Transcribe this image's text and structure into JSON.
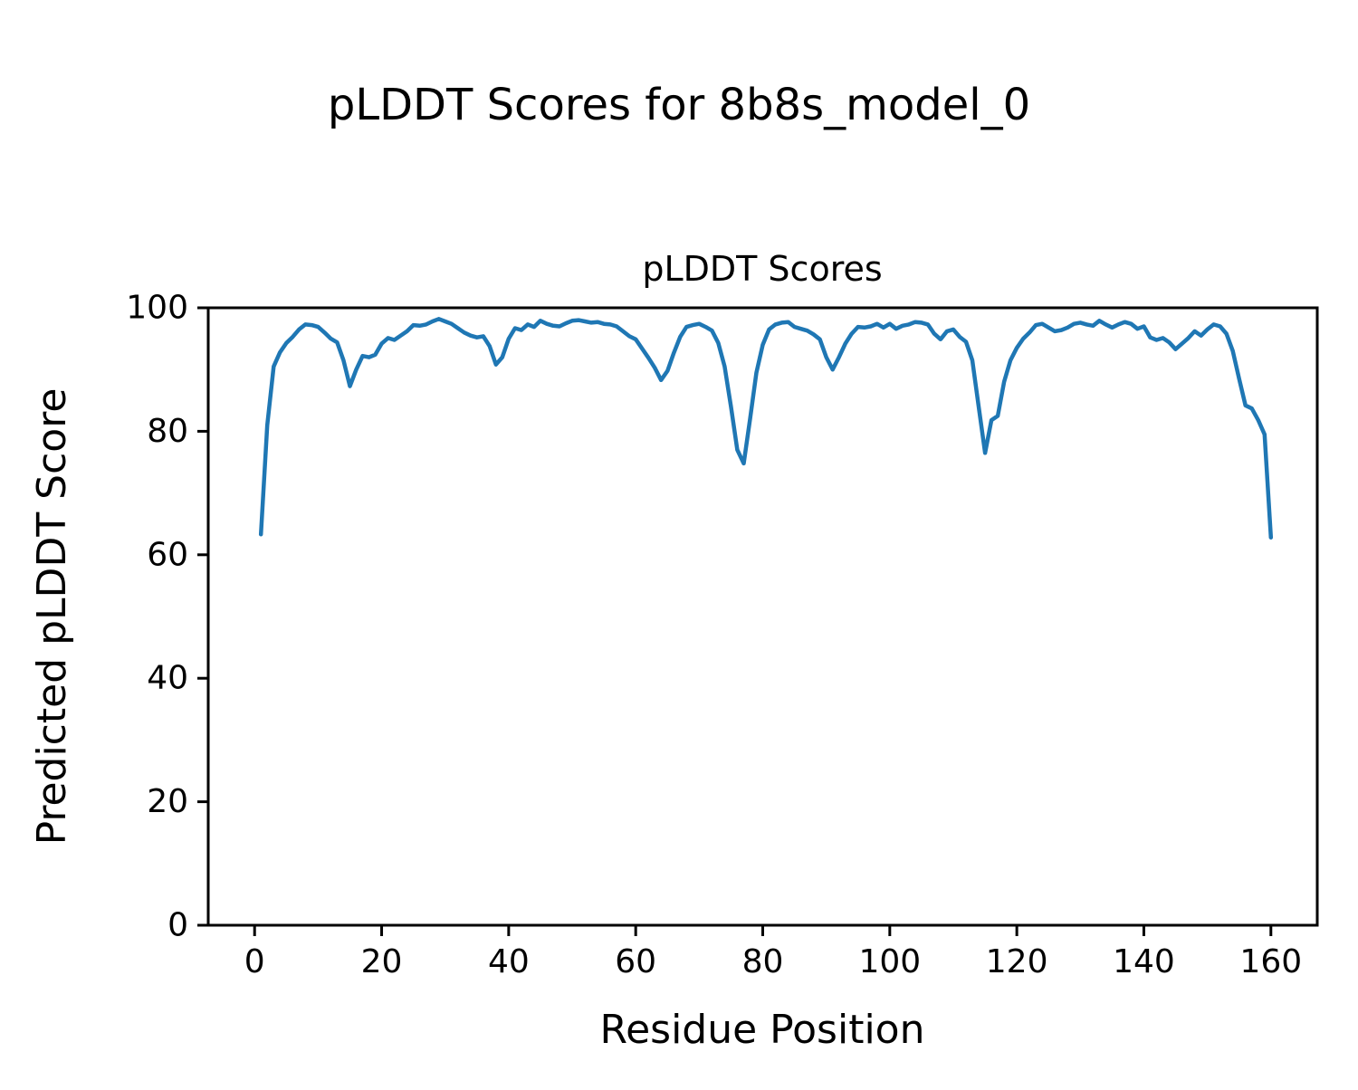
{
  "figure": {
    "title": "pLDDT Scores for 8b8s_model_0",
    "background_color": "#ffffff",
    "text_color": "#000000"
  },
  "chart_data": {
    "type": "line",
    "title": "pLDDT Scores",
    "xlabel": "Residue Position",
    "ylabel": "Predicted pLDDT Score",
    "xlim": [
      -7.3,
      167.3
    ],
    "ylim": [
      0,
      100
    ],
    "x_ticks": [
      0,
      20,
      40,
      60,
      80,
      100,
      120,
      140,
      160
    ],
    "y_ticks": [
      0,
      20,
      40,
      60,
      80,
      100
    ],
    "grid": false,
    "legend": "none",
    "axis_color": "#000000",
    "series": [
      {
        "name": "pLDDT",
        "color": "#1f77b4",
        "line_width": 4.5,
        "x_start": 1,
        "x_step": 1,
        "values": [
          63.3,
          81.0,
          90.5,
          92.8,
          94.3,
          95.3,
          96.5,
          97.3,
          97.2,
          96.9,
          96.0,
          95.0,
          94.4,
          91.5,
          87.3,
          90.0,
          92.2,
          92.0,
          92.4,
          94.2,
          95.1,
          94.8,
          95.5,
          96.2,
          97.2,
          97.1,
          97.3,
          97.8,
          98.2,
          97.8,
          97.4,
          96.7,
          96.0,
          95.5,
          95.2,
          95.4,
          93.8,
          90.8,
          92.0,
          95.0,
          96.7,
          96.4,
          97.3,
          96.9,
          97.9,
          97.4,
          97.1,
          97.0,
          97.5,
          97.9,
          98.0,
          97.8,
          97.6,
          97.7,
          97.4,
          97.3,
          97.0,
          96.2,
          95.4,
          94.9,
          93.4,
          91.9,
          90.3,
          88.3,
          89.8,
          92.7,
          95.3,
          96.9,
          97.2,
          97.4,
          96.9,
          96.3,
          94.3,
          90.5,
          84.0,
          77.0,
          74.8,
          82.0,
          89.5,
          94.0,
          96.5,
          97.3,
          97.6,
          97.7,
          96.9,
          96.6,
          96.3,
          95.7,
          94.9,
          92.0,
          90.0,
          92.0,
          94.2,
          95.8,
          96.9,
          96.8,
          97.0,
          97.4,
          96.8,
          97.4,
          96.6,
          97.1,
          97.3,
          97.7,
          97.6,
          97.3,
          95.8,
          94.9,
          96.2,
          96.5,
          95.3,
          94.5,
          91.5,
          84.0,
          76.5,
          81.8,
          82.5,
          88.0,
          91.5,
          93.5,
          95.0,
          96.0,
          97.2,
          97.4,
          96.8,
          96.2,
          96.4,
          96.8,
          97.4,
          97.6,
          97.3,
          97.1,
          97.9,
          97.3,
          96.8,
          97.3,
          97.7,
          97.4,
          96.6,
          97.0,
          95.2,
          94.8,
          95.1,
          94.4,
          93.3,
          94.2,
          95.1,
          96.2,
          95.5,
          96.5,
          97.3,
          97.0,
          95.8,
          93.0,
          88.5,
          84.2,
          83.7,
          81.8,
          79.5,
          62.8
        ]
      }
    ]
  }
}
